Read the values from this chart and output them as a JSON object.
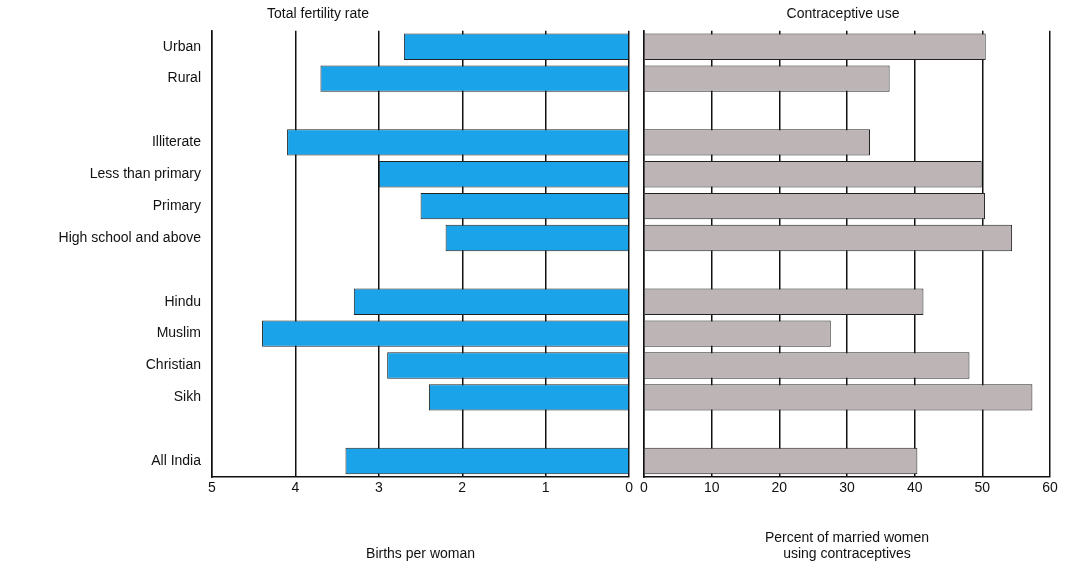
{
  "chart_data": [
    {
      "type": "bar",
      "orientation": "horizontal",
      "title": "Total fertility rate",
      "xlabel": "Births per woman",
      "categories": [
        "Urban",
        "Rural",
        null,
        "Illiterate",
        "Less than primary",
        "Primary",
        "High school and above",
        null,
        "Hindu",
        "Muslim",
        "Christian",
        "Sikh",
        null,
        "All India"
      ],
      "values": [
        2.7,
        3.7,
        null,
        4.1,
        3.0,
        2.5,
        2.2,
        null,
        3.3,
        4.4,
        2.9,
        2.4,
        null,
        3.4
      ],
      "color": "#1aa3e8",
      "xlim": [
        5,
        0
      ],
      "xticks": [
        5,
        4,
        3,
        2,
        1,
        0
      ],
      "grid": "x"
    },
    {
      "type": "bar",
      "orientation": "horizontal",
      "title": "Contraceptive use",
      "xlabel": "Percent of married women using contraceptives",
      "values": [
        50.5,
        36.3,
        null,
        33.4,
        49.9,
        50.4,
        54.4,
        null,
        41.3,
        27.6,
        48.1,
        57.4,
        null,
        40.4
      ],
      "color": "#bdb5b5",
      "xlim": [
        0,
        60
      ],
      "xticks": [
        0,
        10,
        20,
        30,
        40,
        50,
        60
      ],
      "grid": "x",
      "tick_labels": "x"
    }
  ]
}
